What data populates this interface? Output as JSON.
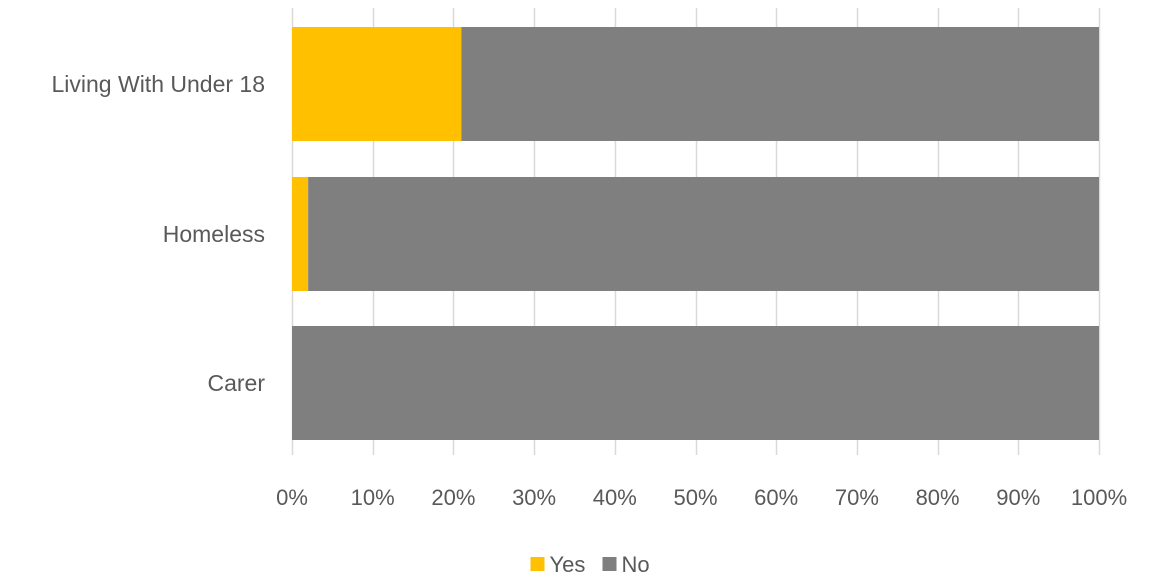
{
  "chart_data": {
    "type": "bar",
    "orientation": "horizontal",
    "stacked": "percent",
    "categories": [
      "Living With Under 18",
      "Homeless",
      "Carer"
    ],
    "series": [
      {
        "name": "Yes",
        "color": "#FFC000",
        "values": [
          21,
          2,
          0
        ]
      },
      {
        "name": "No",
        "color": "#7F7F7F",
        "values": [
          79,
          98,
          100
        ]
      }
    ],
    "xlim": [
      0,
      100
    ],
    "xticks": [
      0,
      10,
      20,
      30,
      40,
      50,
      60,
      70,
      80,
      90,
      100
    ],
    "tick_suffix": "%",
    "grid": "vertical",
    "legend_position": "bottom-center"
  }
}
